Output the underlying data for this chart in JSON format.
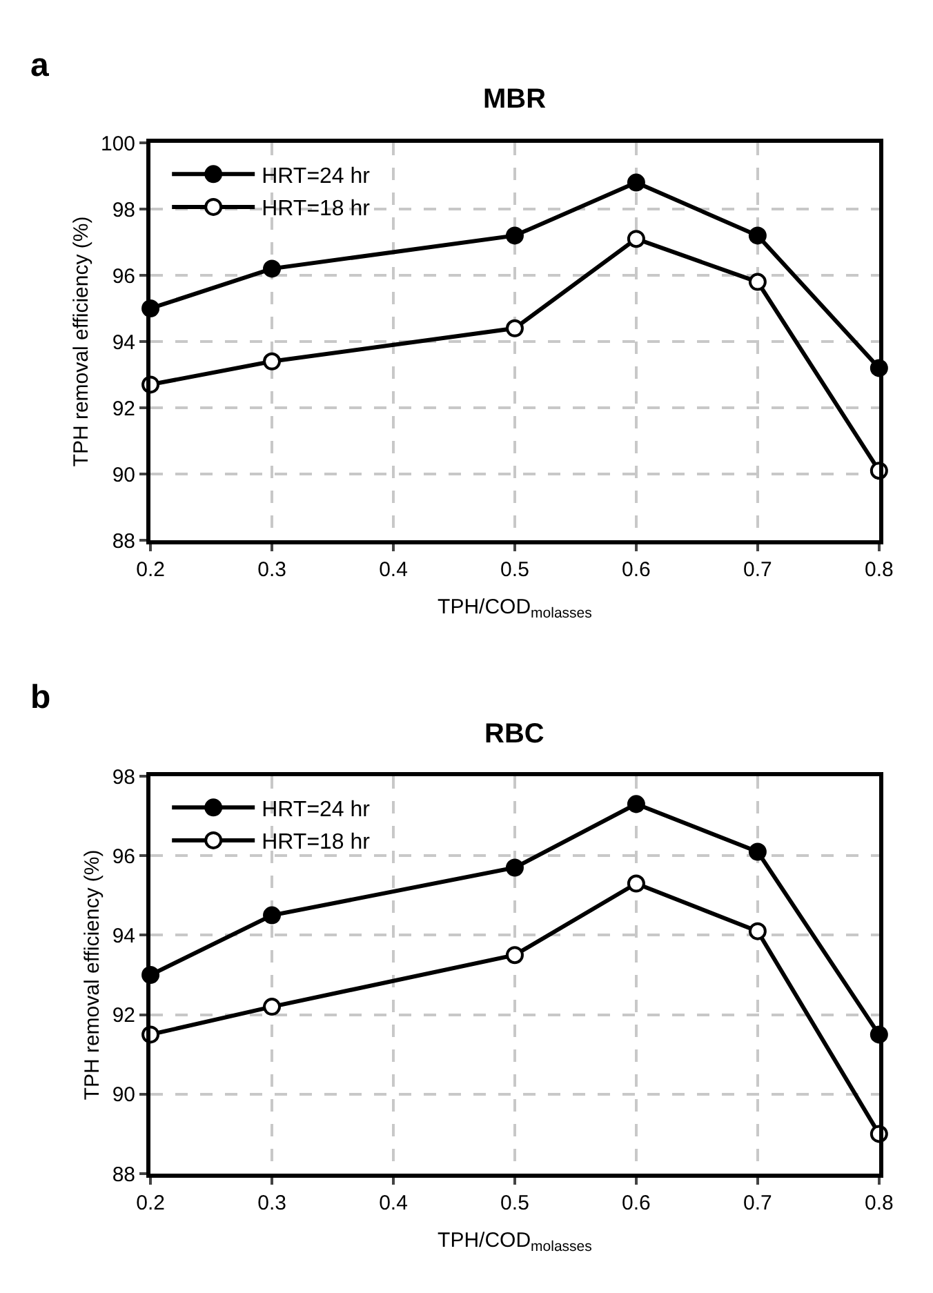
{
  "chart_data": [
    {
      "type": "line",
      "title": "MBR",
      "annotations": [
        "a"
      ],
      "xlabel": "TPH/COD$_{molasses}$",
      "ylabel": "TPH removal efficiency (%)",
      "x": [
        0.2,
        0.3,
        0.5,
        0.6,
        0.7,
        0.8
      ],
      "series": [
        {
          "name": "HRT=24 hr",
          "color": "#000000",
          "marker": "circle",
          "values": [
            95.0,
            96.2,
            97.2,
            98.8,
            97.2,
            93.2
          ]
        },
        {
          "name": "HRT=18 hr",
          "color": "#000000",
          "marker": "circle-open",
          "values": [
            92.7,
            93.4,
            94.4,
            97.1,
            95.8,
            90.1
          ]
        }
      ],
      "xlim": [
        0.2,
        0.8
      ],
      "xticks": [
        0.2,
        0.3,
        0.4,
        0.5,
        0.6,
        0.7,
        0.8
      ],
      "ylim": [
        88,
        100
      ],
      "yticks": [
        88,
        90,
        92,
        94,
        96,
        98,
        100
      ],
      "grid": true,
      "legend": "top left",
      "line_style": "solid"
    },
    {
      "type": "line",
      "title": "RBC",
      "annotations": [
        "b"
      ],
      "xlabel": "TPH/COD$_{molasses}$",
      "ylabel": "TPH removal efficiency (%)",
      "x": [
        0.2,
        0.3,
        0.5,
        0.6,
        0.7,
        0.8
      ],
      "series": [
        {
          "name": "HRT=24 hr",
          "color": "#000000",
          "marker": "circle",
          "values": [
            93.0,
            94.5,
            95.7,
            97.3,
            96.1,
            91.5
          ]
        },
        {
          "name": "HRT=18 hr",
          "color": "#000000",
          "marker": "circle-open",
          "values": [
            91.5,
            92.2,
            93.5,
            95.3,
            94.1,
            89.0
          ]
        }
      ],
      "xlim": [
        0.2,
        0.8
      ],
      "xticks": [
        0.2,
        0.3,
        0.4,
        0.5,
        0.6,
        0.7,
        0.8
      ],
      "ylim": [
        88,
        98
      ],
      "yticks": [
        88,
        90,
        92,
        94,
        96,
        98
      ],
      "grid": true,
      "legend": "top left",
      "line_style": "solid"
    }
  ]
}
